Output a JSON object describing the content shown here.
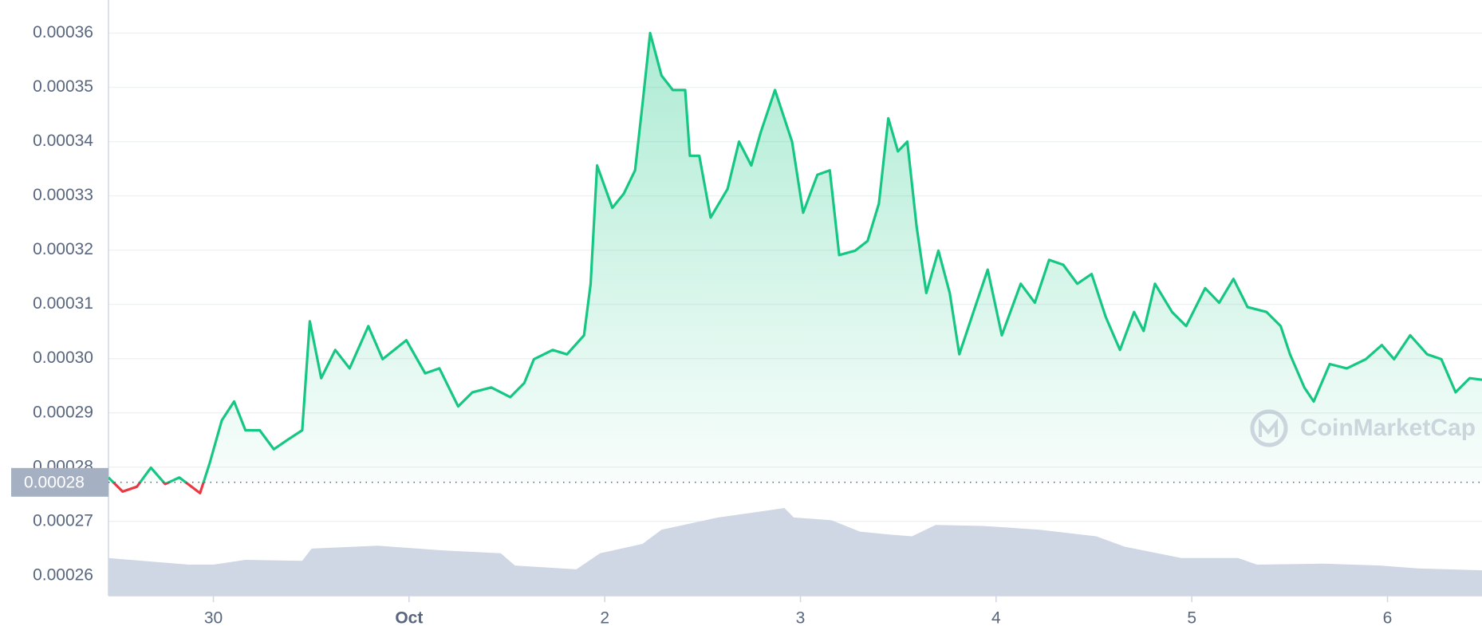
{
  "chart_data": {
    "type": "line",
    "x": [
      -0.536,
      -0.464,
      -0.391,
      -0.319,
      -0.246,
      -0.174,
      -0.068,
      -0.019,
      0.043,
      0.106,
      0.164,
      0.237,
      0.309,
      0.382,
      0.454,
      0.493,
      0.551,
      0.623,
      0.696,
      0.792,
      0.865,
      0.986,
      1.082,
      1.155,
      1.251,
      1.324,
      1.42,
      1.517,
      1.589,
      1.638,
      1.734,
      1.807,
      1.894,
      1.928,
      1.961,
      2.039,
      2.097,
      2.155,
      2.193,
      2.232,
      2.29,
      2.348,
      2.411,
      2.435,
      2.483,
      2.541,
      2.628,
      2.686,
      2.749,
      2.797,
      2.87,
      2.957,
      3.014,
      3.087,
      3.15,
      3.198,
      3.28,
      3.343,
      3.401,
      3.449,
      3.498,
      3.546,
      3.594,
      3.643,
      3.705,
      3.763,
      3.812,
      3.884,
      3.957,
      4.029,
      4.126,
      4.198,
      4.271,
      4.343,
      4.415,
      4.488,
      4.56,
      4.633,
      4.705,
      4.754,
      4.812,
      4.899,
      4.971,
      5.068,
      5.14,
      5.213,
      5.285,
      5.382,
      5.454,
      5.502,
      5.575,
      5.623,
      5.705,
      5.792,
      5.889,
      5.971,
      6.034,
      6.116,
      6.203,
      6.275,
      6.348,
      6.42,
      6.483
    ],
    "values": [
      0.0002781,
      0.0002755,
      0.0002764,
      0.0002799,
      0.0002769,
      0.0002781,
      0.0002752,
      0.0002807,
      0.0002886,
      0.0002921,
      0.0002868,
      0.0002868,
      0.0002833,
      0.0002851,
      0.0002868,
      0.0003069,
      0.0002964,
      0.0003016,
      0.0002982,
      0.000306,
      0.0002999,
      0.0003034,
      0.0002973,
      0.0002982,
      0.0002912,
      0.0002938,
      0.0002947,
      0.0002929,
      0.0002955,
      0.0002999,
      0.0003016,
      0.0003008,
      0.0003043,
      0.0003138,
      0.0003356,
      0.0003278,
      0.0003304,
      0.0003347,
      0.0003469,
      0.00036,
      0.0003522,
      0.0003495,
      0.0003495,
      0.0003374,
      0.0003374,
      0.000326,
      0.0003313,
      0.00034,
      0.0003356,
      0.0003417,
      0.0003495,
      0.00034,
      0.0003269,
      0.0003339,
      0.0003347,
      0.0003191,
      0.0003199,
      0.0003217,
      0.0003286,
      0.0003443,
      0.0003382,
      0.00034,
      0.0003243,
      0.0003121,
      0.0003199,
      0.0003121,
      0.0003008,
      0.0003086,
      0.0003164,
      0.0003043,
      0.0003138,
      0.0003103,
      0.0003182,
      0.0003173,
      0.0003138,
      0.0003156,
      0.0003077,
      0.0003016,
      0.0003086,
      0.0003051,
      0.0003138,
      0.0003086,
      0.000306,
      0.000313,
      0.0003103,
      0.0003147,
      0.0003095,
      0.0003086,
      0.000306,
      0.0003008,
      0.0002947,
      0.0002921,
      0.000299,
      0.0002982,
      0.0002999,
      0.0003025,
      0.0002999,
      0.0003043,
      0.0003008,
      0.0002999,
      0.0002938,
      0.0002964,
      0.0002961
    ],
    "color": "#16c784",
    "negative_color": "#ea3943",
    "baseline": {
      "value": 0.0002772,
      "label": "0.00028"
    },
    "ylim": [
      0.0002563,
      0.0003661
    ],
    "yticks": [
      0.00026,
      0.00027,
      0.00028,
      0.00029,
      {
        "value": 0.0003,
        "label": "0.00030"
      },
      0.00031,
      0.00032,
      0.00033,
      0.00034,
      0.00035,
      0.00036
    ],
    "xlim": [
      -0.536,
      6.483
    ],
    "xticks": [
      {
        "value": 0,
        "label": "30"
      },
      {
        "value": 1,
        "label": "Oct"
      },
      2,
      3,
      4,
      5,
      6
    ],
    "grid": true,
    "volume": {
      "x": [
        -0.536,
        -0.126,
        0,
        0.164,
        0.454,
        0.502,
        0.841,
        1.179,
        1.469,
        1.541,
        1.855,
        1.976,
        2.193,
        2.29,
        2.58,
        2.821,
        2.918,
        2.966,
        3.159,
        3.304,
        3.449,
        3.57,
        3.691,
        3.932,
        4.222,
        4.512,
        4.657,
        4.947,
        5.237,
        5.333,
        5.671,
        5.961,
        6.155,
        6.483
      ],
      "values": [
        40,
        33,
        33,
        38,
        37,
        50,
        53,
        48,
        45,
        32,
        28,
        45,
        55,
        70,
        83,
        90,
        93,
        83,
        80,
        68,
        65,
        63,
        75,
        74,
        70,
        63,
        52,
        40,
        40,
        33,
        34,
        32,
        29,
        27
      ],
      "color": "#cfd6e4"
    },
    "watermark": "CoinMarketCap"
  }
}
